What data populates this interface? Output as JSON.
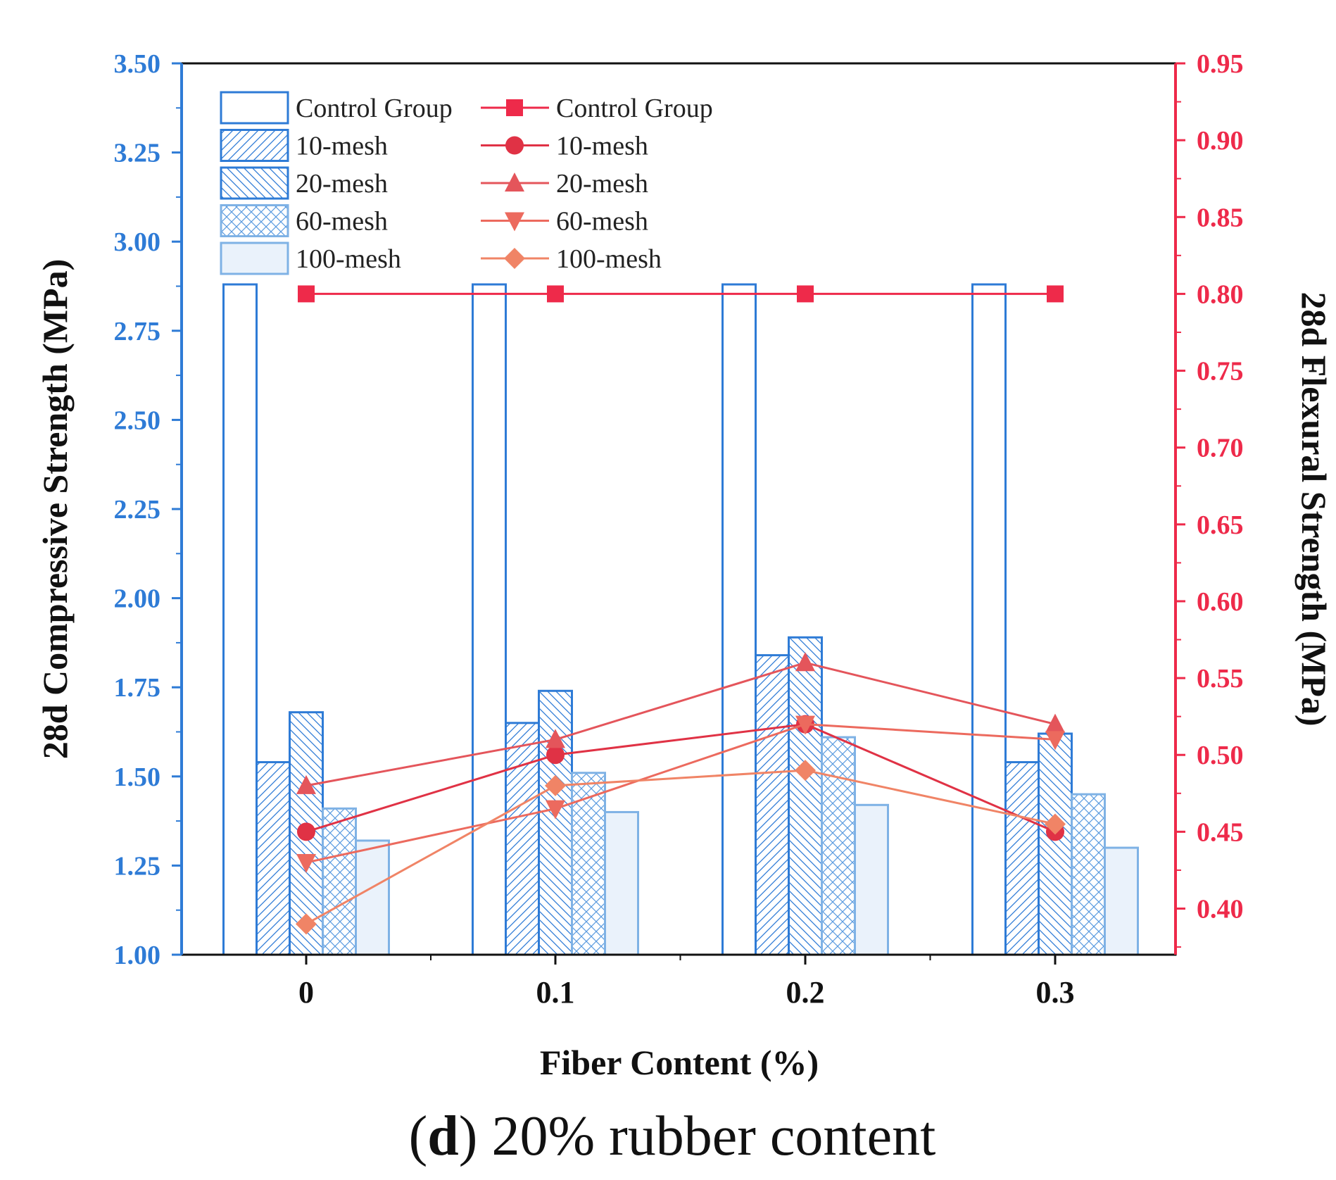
{
  "chart_data": {
    "type": "bar",
    "title": "",
    "caption_letter": "d",
    "caption_text": "20% rubber content",
    "xlabel": "Fiber Content (%)",
    "ylabel_left": "28d Compressive Strength (MPa)",
    "ylabel_right": "28d Flexural Strength (MPa)",
    "categories": [
      "0",
      "0.1",
      "0.2",
      "0.3"
    ],
    "ylim_left": [
      1.0,
      3.5
    ],
    "yticks_left": [
      "1.00",
      "1.25",
      "1.50",
      "1.75",
      "2.00",
      "2.25",
      "2.50",
      "2.75",
      "3.00",
      "3.25",
      "3.50"
    ],
    "ylim_right": [
      0.37,
      0.95
    ],
    "yticks_right": [
      "0.40",
      "0.45",
      "0.50",
      "0.55",
      "0.60",
      "0.65",
      "0.70",
      "0.75",
      "0.80",
      "0.85",
      "0.90",
      "0.95"
    ],
    "bar_series": [
      {
        "name": "Control Group",
        "pattern": "none",
        "values": [
          2.88,
          2.88,
          2.88,
          2.88
        ]
      },
      {
        "name": "10-mesh",
        "pattern": "diag-right",
        "values": [
          1.54,
          1.65,
          1.84,
          1.54
        ]
      },
      {
        "name": "20-mesh",
        "pattern": "diag-left",
        "values": [
          1.68,
          1.74,
          1.89,
          1.62
        ]
      },
      {
        "name": "60-mesh",
        "pattern": "cross",
        "values": [
          1.41,
          1.51,
          1.61,
          1.45
        ]
      },
      {
        "name": "100-mesh",
        "pattern": "fill",
        "values": [
          1.32,
          1.4,
          1.42,
          1.3
        ]
      }
    ],
    "line_series": [
      {
        "name": "Control Group",
        "marker": "square",
        "color": "#ee2a4a",
        "values": [
          0.8,
          0.8,
          0.8,
          0.8
        ]
      },
      {
        "name": "10-mesh",
        "marker": "circle",
        "color": "#e03245",
        "values": [
          0.45,
          0.5,
          0.52,
          0.45
        ]
      },
      {
        "name": "20-mesh",
        "marker": "triangle-up",
        "color": "#e4555b",
        "values": [
          0.48,
          0.51,
          0.56,
          0.52
        ]
      },
      {
        "name": "60-mesh",
        "marker": "triangle-down",
        "color": "#ec6a5e",
        "values": [
          0.43,
          0.465,
          0.52,
          0.51
        ]
      },
      {
        "name": "100-mesh",
        "marker": "diamond",
        "color": "#f08466",
        "values": [
          0.39,
          0.48,
          0.49,
          0.455
        ]
      }
    ],
    "colors": {
      "left_axis": "#2e7bd6",
      "right_axis": "#ee2a4a",
      "bar_stroke": "#2e7bd6",
      "bar_stroke_light": "#7fb2e5",
      "bar_fill_light": "#eaf2fb"
    },
    "legend_position": "top-left"
  }
}
